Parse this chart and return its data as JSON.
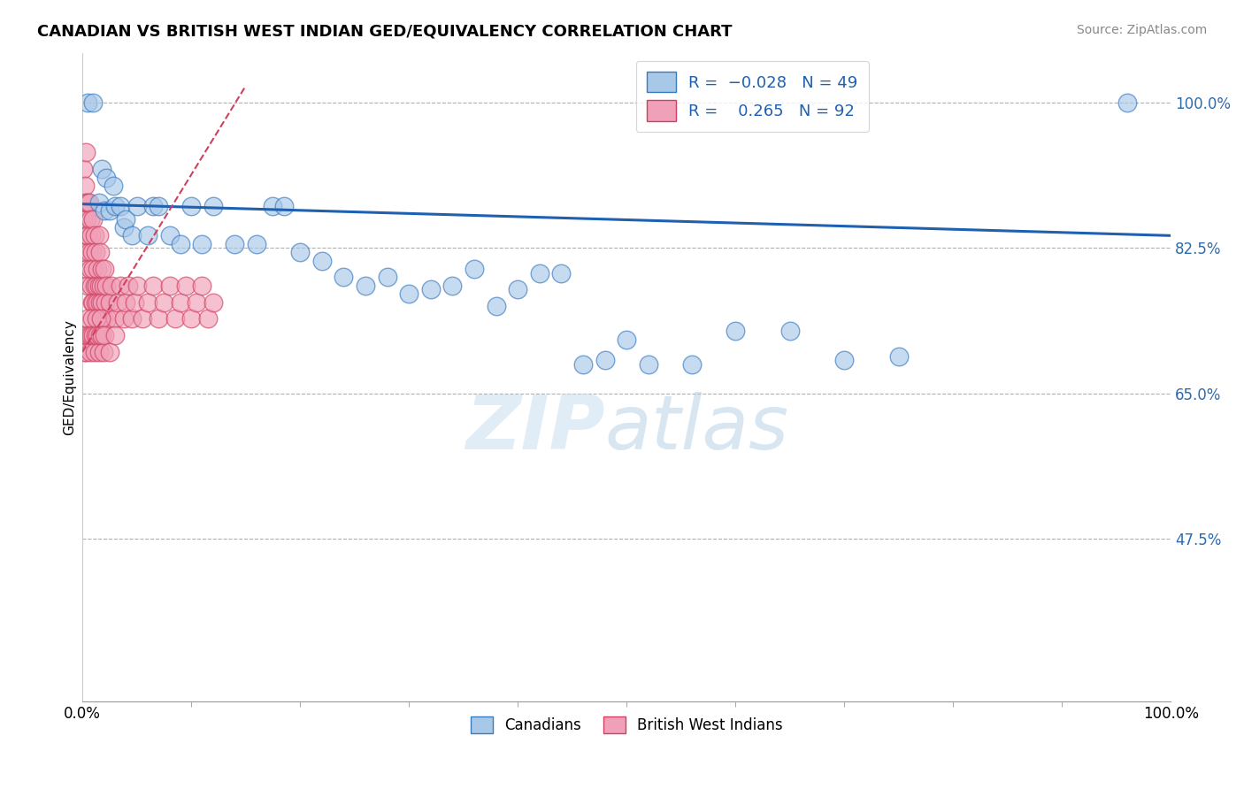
{
  "title": "CANADIAN VS BRITISH WEST INDIAN GED/EQUIVALENCY CORRELATION CHART",
  "source_text": "Source: ZipAtlas.com",
  "ylabel": "GED/Equivalency",
  "xlim": [
    0,
    1
  ],
  "ylim": [
    0.28,
    1.06
  ],
  "yticks": [
    0.475,
    0.65,
    0.825,
    1.0
  ],
  "ytick_labels": [
    "47.5%",
    "65.0%",
    "82.5%",
    "100.0%"
  ],
  "xticks": [
    0,
    1
  ],
  "xtick_labels": [
    "0.0%",
    "100.0%"
  ],
  "color_blue": "#a8c8e8",
  "color_pink": "#f0a0b8",
  "edge_blue": "#3a7abf",
  "edge_pink": "#d04060",
  "line_blue_color": "#2060b0",
  "line_pink_color": "#d04060",
  "watermark": "ZIPatlas",
  "blue_line_start_y": 0.878,
  "blue_line_end_y": 0.84,
  "pink_line_start_x": 0.0,
  "pink_line_start_y": 0.7,
  "pink_line_end_x": 0.15,
  "pink_line_end_y": 1.02,
  "blue_x": [
    0.005,
    0.01,
    0.015,
    0.018,
    0.02,
    0.022,
    0.025,
    0.028,
    0.03,
    0.035,
    0.038,
    0.04,
    0.045,
    0.05,
    0.06,
    0.065,
    0.07,
    0.08,
    0.09,
    0.1,
    0.11,
    0.12,
    0.14,
    0.16,
    0.175,
    0.185,
    0.2,
    0.22,
    0.24,
    0.26,
    0.28,
    0.3,
    0.32,
    0.34,
    0.36,
    0.38,
    0.4,
    0.42,
    0.44,
    0.46,
    0.48,
    0.5,
    0.52,
    0.56,
    0.6,
    0.65,
    0.7,
    0.75,
    0.96
  ],
  "blue_y": [
    1.0,
    1.0,
    0.88,
    0.92,
    0.87,
    0.91,
    0.87,
    0.9,
    0.875,
    0.875,
    0.85,
    0.86,
    0.84,
    0.875,
    0.84,
    0.875,
    0.875,
    0.84,
    0.83,
    0.875,
    0.83,
    0.875,
    0.83,
    0.83,
    0.875,
    0.875,
    0.82,
    0.81,
    0.79,
    0.78,
    0.79,
    0.77,
    0.775,
    0.78,
    0.8,
    0.755,
    0.775,
    0.795,
    0.795,
    0.685,
    0.69,
    0.715,
    0.685,
    0.685,
    0.725,
    0.725,
    0.69,
    0.695,
    1.0
  ],
  "pink_x": [
    0.001,
    0.001,
    0.002,
    0.002,
    0.003,
    0.003,
    0.003,
    0.004,
    0.004,
    0.005,
    0.005,
    0.005,
    0.006,
    0.006,
    0.007,
    0.007,
    0.008,
    0.008,
    0.009,
    0.009,
    0.01,
    0.01,
    0.01,
    0.011,
    0.011,
    0.012,
    0.012,
    0.013,
    0.013,
    0.014,
    0.014,
    0.015,
    0.015,
    0.016,
    0.016,
    0.017,
    0.017,
    0.018,
    0.018,
    0.019,
    0.019,
    0.02,
    0.021,
    0.022,
    0.023,
    0.025,
    0.027,
    0.03,
    0.032,
    0.035,
    0.038,
    0.04,
    0.042,
    0.045,
    0.048,
    0.05,
    0.055,
    0.06,
    0.065,
    0.07,
    0.075,
    0.08,
    0.085,
    0.09,
    0.095,
    0.1,
    0.105,
    0.11,
    0.115,
    0.12,
    0.001,
    0.002,
    0.003,
    0.004,
    0.005,
    0.006,
    0.007,
    0.008,
    0.009,
    0.01,
    0.011,
    0.012,
    0.013,
    0.014,
    0.015,
    0.016,
    0.017,
    0.018,
    0.019,
    0.02,
    0.025,
    0.03
  ],
  "pink_y": [
    0.86,
    0.92,
    0.84,
    0.9,
    0.82,
    0.88,
    0.94,
    0.8,
    0.86,
    0.84,
    0.88,
    0.78,
    0.82,
    0.88,
    0.8,
    0.86,
    0.78,
    0.84,
    0.82,
    0.76,
    0.8,
    0.86,
    0.76,
    0.78,
    0.84,
    0.76,
    0.82,
    0.78,
    0.74,
    0.8,
    0.76,
    0.78,
    0.84,
    0.76,
    0.82,
    0.78,
    0.74,
    0.8,
    0.76,
    0.78,
    0.74,
    0.8,
    0.76,
    0.78,
    0.74,
    0.76,
    0.78,
    0.74,
    0.76,
    0.78,
    0.74,
    0.76,
    0.78,
    0.74,
    0.76,
    0.78,
    0.74,
    0.76,
    0.78,
    0.74,
    0.76,
    0.78,
    0.74,
    0.76,
    0.78,
    0.74,
    0.76,
    0.78,
    0.74,
    0.76,
    0.72,
    0.7,
    0.7,
    0.72,
    0.74,
    0.72,
    0.7,
    0.72,
    0.74,
    0.72,
    0.7,
    0.72,
    0.74,
    0.72,
    0.7,
    0.72,
    0.74,
    0.72,
    0.7,
    0.72,
    0.7,
    0.72
  ]
}
